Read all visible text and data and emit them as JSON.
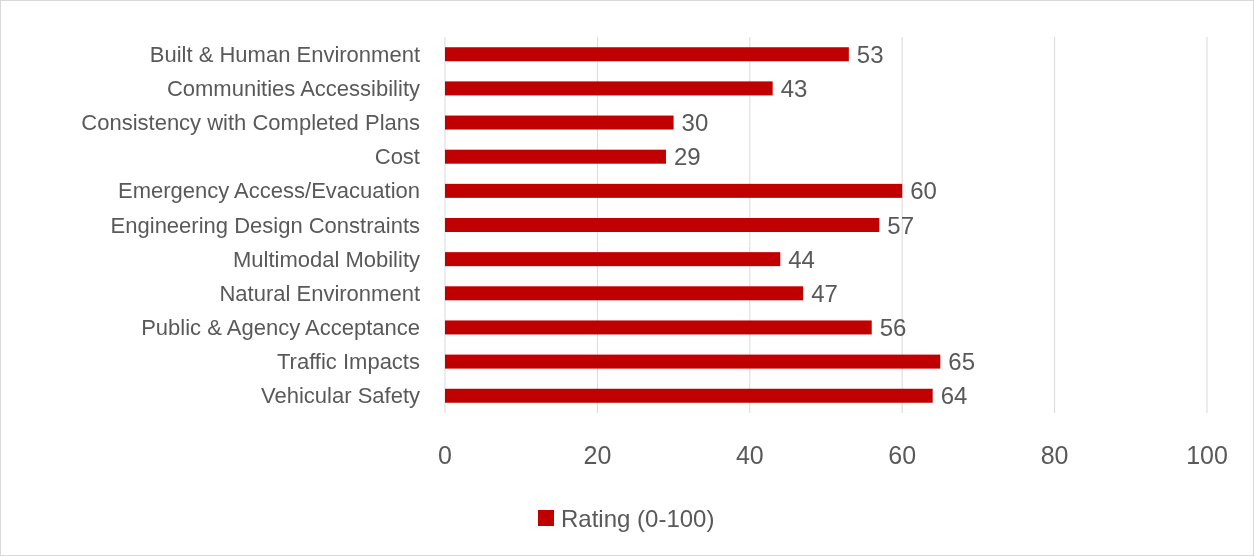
{
  "chart_data": {
    "type": "bar",
    "orientation": "horizontal",
    "categories": [
      "Built & Human Environment",
      "Communities Accessibility",
      "Consistency with Completed Plans",
      "Cost",
      "Emergency Access/Evacuation",
      "Engineering Design Constraints",
      "Multimodal Mobility",
      "Natural Environment",
      "Public & Agency Acceptance",
      "Traffic Impacts",
      "Vehicular Safety"
    ],
    "series": [
      {
        "name": "Rating (0-100)",
        "color": "#c00000",
        "values": [
          53,
          43,
          30,
          29,
          60,
          57,
          44,
          47,
          56,
          65,
          64
        ]
      }
    ],
    "xlim": [
      0,
      100
    ],
    "xticks": [
      0,
      20,
      40,
      60,
      80,
      100
    ],
    "grid": "x",
    "data_labels": true,
    "legend": "bottom"
  }
}
